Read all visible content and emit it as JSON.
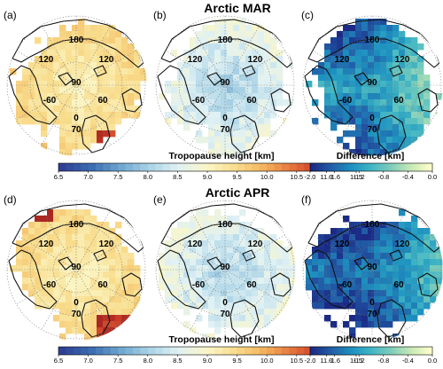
{
  "chart_data": {
    "type": "heatmap",
    "projection": "north polar stereographic",
    "rows": [
      {
        "title": "Arctic MAR",
        "panels": [
          {
            "label": "(a)",
            "field": "Tropopause height",
            "colorbar": "height"
          },
          {
            "label": "(b)",
            "field": "Tropopause height",
            "colorbar": "height"
          },
          {
            "label": "(c)",
            "field": "Difference",
            "colorbar": "difference"
          }
        ]
      },
      {
        "title": "Arctic APR",
        "panels": [
          {
            "label": "(d)",
            "field": "Tropopause height",
            "colorbar": "height"
          },
          {
            "label": "(e)",
            "field": "Tropopause height",
            "colorbar": "height"
          },
          {
            "label": "(f)",
            "field": "Difference",
            "colorbar": "difference"
          }
        ]
      }
    ],
    "map_labels": {
      "longitude": [
        "180",
        "120",
        "120",
        "-60",
        "60",
        "0"
      ],
      "latitude": [
        "90",
        "70"
      ]
    },
    "colorbars": {
      "height": {
        "label": "Tropopause height [km]",
        "ticks": [
          "6.5",
          "7.0",
          "7.5",
          "8.0",
          "8.5",
          "9.0",
          "9.5",
          "10.0",
          "10.5",
          "11.0",
          "11.5"
        ],
        "range": [
          6.5,
          11.5
        ],
        "colors": [
          "#2f3f95",
          "#3b6cb0",
          "#6ea6d0",
          "#a9d3e6",
          "#e0f1f4",
          "#fbf6c6",
          "#f8dc8c",
          "#f3b05a",
          "#e26f3a",
          "#c43325",
          "#8f1d1e"
        ]
      },
      "difference": {
        "label": "Difference [km]",
        "ticks": [
          "-2.0",
          "-1.6",
          "-1.2",
          "-0.8",
          "-0.4",
          "0.0"
        ],
        "range": [
          -2.0,
          0.0
        ],
        "colors": [
          "#1b2a85",
          "#225ea8",
          "#1d91c0",
          "#41b6c4",
          "#7fcdbb",
          "#c7e9b4",
          "#ffffcc"
        ]
      }
    },
    "grid": "dotted latitude circles and meridians"
  }
}
